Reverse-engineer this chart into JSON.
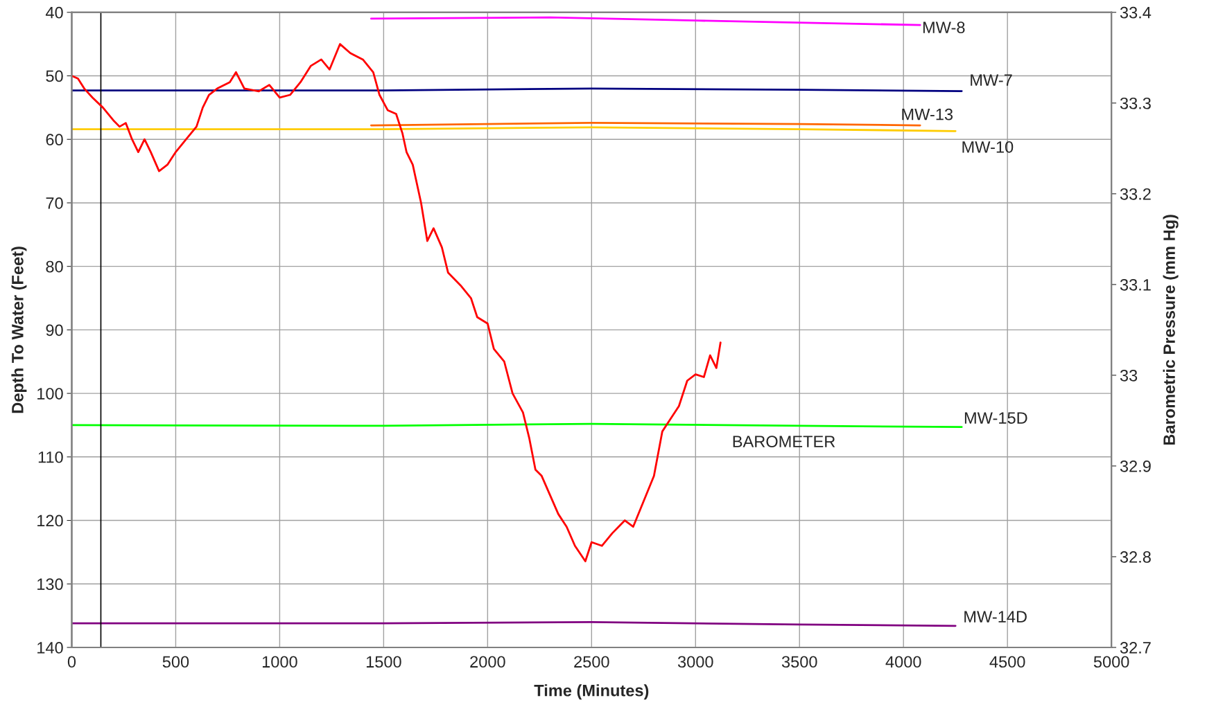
{
  "chart_data": {
    "type": "line",
    "xlabel": "Time (Minutes)",
    "ylabel": "Depth To Water (Feet)",
    "y2label": "Barometric Pressure (mm Hg)",
    "xlim": [
      0,
      5000
    ],
    "xticks": [
      0,
      500,
      1000,
      1500,
      2000,
      2500,
      3000,
      3500,
      4000,
      4500,
      5000
    ],
    "ylim": [
      140,
      40
    ],
    "yticks": [
      40,
      50,
      60,
      70,
      80,
      90,
      100,
      110,
      120,
      130,
      140
    ],
    "y2lim": [
      32.7,
      33.4
    ],
    "y2ticks": [
      32.7,
      32.8,
      32.9,
      33,
      33.1,
      33.2,
      33.3,
      33.4
    ],
    "grid": true,
    "legend": false,
    "marker": "none",
    "line_style": "solid",
    "ref_lines": [
      {
        "axis": "x",
        "value": 140,
        "color": "#000000"
      }
    ],
    "annotations": [
      "BAROMETER"
    ],
    "series": [
      {
        "name": "MW-8",
        "color": "#ff00ff",
        "x": [
          1440,
          2300,
          3000,
          4080
        ],
        "values": [
          41,
          40.8,
          41.3,
          42
        ]
      },
      {
        "name": "MW-7",
        "color": "#000080",
        "x": [
          0,
          1500,
          2500,
          3500,
          4280
        ],
        "values": [
          52.3,
          52.3,
          52,
          52.2,
          52.4
        ]
      },
      {
        "name": "MW-13",
        "color": "#ff6600",
        "x": [
          1440,
          2500,
          3500,
          4080
        ],
        "values": [
          57.8,
          57.4,
          57.6,
          57.8
        ]
      },
      {
        "name": "MW-10",
        "color": "#ffcc00",
        "x": [
          0,
          1500,
          2500,
          3500,
          4250
        ],
        "values": [
          58.4,
          58.4,
          58.1,
          58.4,
          58.7
        ]
      },
      {
        "name": "MW-15D",
        "color": "#00ff00",
        "x": [
          0,
          1500,
          2500,
          3500,
          4280
        ],
        "values": [
          105,
          105.1,
          104.8,
          105.1,
          105.3
        ]
      },
      {
        "name": "MW-14D",
        "color": "#800080",
        "x": [
          0,
          1500,
          2500,
          3500,
          4250
        ],
        "values": [
          136.2,
          136.2,
          136,
          136.4,
          136.6
        ]
      },
      {
        "color": "#ff0000",
        "axis": "y2",
        "x": [
          0,
          30,
          60,
          100,
          150,
          200,
          230,
          260,
          290,
          320,
          350,
          380,
          420,
          460,
          500,
          550,
          600,
          630,
          660,
          700,
          760,
          790,
          830,
          900,
          950,
          1000,
          1050,
          1100,
          1150,
          1200,
          1240,
          1290,
          1340,
          1400,
          1450,
          1480,
          1520,
          1560,
          1590,
          1610,
          1640,
          1680,
          1710,
          1740,
          1780,
          1810,
          1870,
          1920,
          1950,
          2000,
          2030,
          2080,
          2120,
          2170,
          2200,
          2230,
          2260,
          2300,
          2340,
          2380,
          2420,
          2470,
          2500,
          2550,
          2600,
          2660,
          2700,
          2750,
          2800,
          2840,
          2880,
          2920,
          2960,
          3000,
          3040,
          3070,
          3100,
          3120
        ],
        "values": [
          33.33,
          33.327,
          33.316,
          33.306,
          33.295,
          33.281,
          33.274,
          33.278,
          33.26,
          33.246,
          33.26,
          33.246,
          33.225,
          33.232,
          33.246,
          33.26,
          33.274,
          33.295,
          33.309,
          33.316,
          33.323,
          33.334,
          33.316,
          33.313,
          33.32,
          33.306,
          33.309,
          33.323,
          33.341,
          33.348,
          33.337,
          33.365,
          33.355,
          33.348,
          33.334,
          33.309,
          33.292,
          33.288,
          33.267,
          33.246,
          33.232,
          33.19,
          33.148,
          33.162,
          33.141,
          33.113,
          33.099,
          33.085,
          33.064,
          33.057,
          33.029,
          33.015,
          32.98,
          32.959,
          32.931,
          32.896,
          32.889,
          32.868,
          32.847,
          32.833,
          32.812,
          32.795,
          32.816,
          32.812,
          32.826,
          32.84,
          32.833,
          32.861,
          32.889,
          32.938,
          32.952,
          32.966,
          32.994,
          33.001,
          32.998,
          33.022,
          33.008,
          33.036
        ]
      }
    ]
  }
}
